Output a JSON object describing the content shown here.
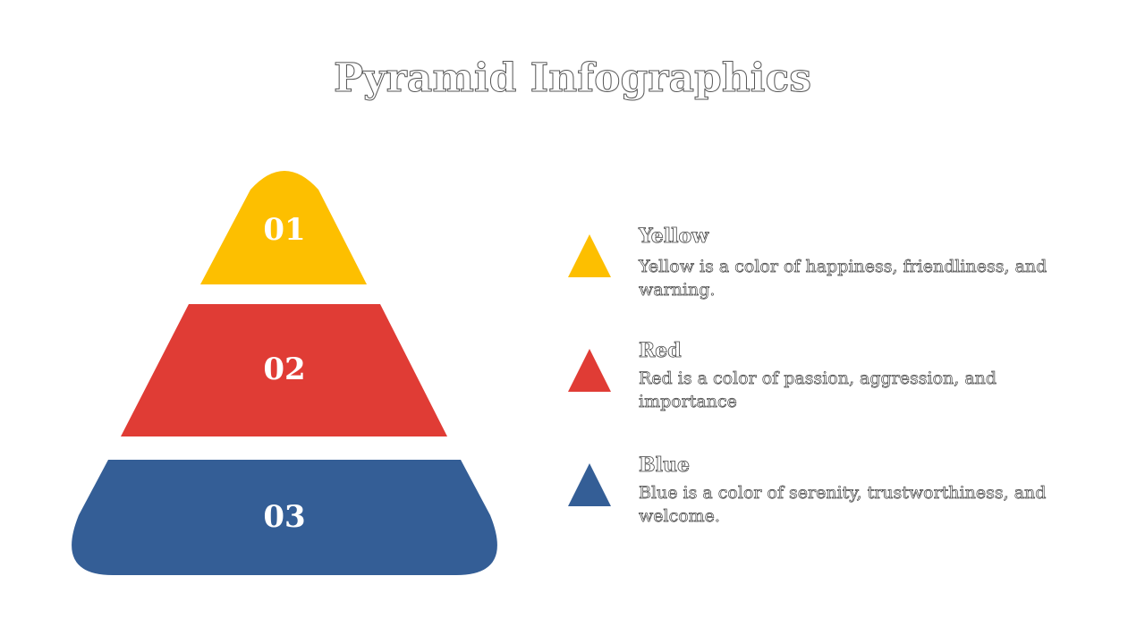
{
  "title": "Pyramid Infographics",
  "levels": [
    {
      "number": "01",
      "name": "Yellow",
      "description": "Yellow is a color of happiness, friendliness, and warning."
    },
    {
      "number": "02",
      "name": "Red",
      "description": "Red is a color of passion, aggression, and importance"
    },
    {
      "number": "03",
      "name": "Blue",
      "description": "Blue is a color of serenity, trustworthiness, and welcome."
    }
  ]
}
